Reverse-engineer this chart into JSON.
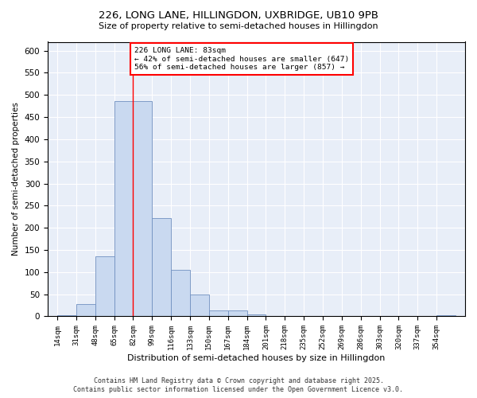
{
  "title1": "226, LONG LANE, HILLINGDON, UXBRIDGE, UB10 9PB",
  "title2": "Size of property relative to semi-detached houses in Hillingdon",
  "xlabel": "Distribution of semi-detached houses by size in Hillingdon",
  "ylabel": "Number of semi-detached properties",
  "footnote1": "Contains HM Land Registry data © Crown copyright and database right 2025.",
  "footnote2": "Contains public sector information licensed under the Open Government Licence v3.0.",
  "annotation_title": "226 LONG LANE: 83sqm",
  "annotation_line1": "← 42% of semi-detached houses are smaller (647)",
  "annotation_line2": "56% of semi-detached houses are larger (857) →",
  "bar_color": "#c9d9f0",
  "bar_edge_color": "#7090c0",
  "vline_color": "red",
  "background_color": "#e8eef8",
  "categories": [
    "14sqm",
    "31sqm",
    "48sqm",
    "65sqm",
    "82sqm",
    "99sqm",
    "116sqm",
    "133sqm",
    "150sqm",
    "167sqm",
    "184sqm",
    "201sqm",
    "218sqm",
    "235sqm",
    "252sqm",
    "269sqm",
    "286sqm",
    "303sqm",
    "320sqm",
    "337sqm",
    "354sqm"
  ],
  "bin_edges": [
    14,
    31,
    48,
    65,
    82,
    99,
    116,
    133,
    150,
    167,
    184,
    201,
    218,
    235,
    252,
    269,
    286,
    303,
    320,
    337,
    354
  ],
  "values": [
    2,
    27,
    135,
    487,
    487,
    222,
    105,
    50,
    14,
    13,
    5,
    1,
    0,
    0,
    0,
    0,
    0,
    0,
    1,
    0,
    3
  ],
  "ylim": [
    0,
    620
  ],
  "yticks": [
    0,
    50,
    100,
    150,
    200,
    250,
    300,
    350,
    400,
    450,
    500,
    550,
    600
  ]
}
